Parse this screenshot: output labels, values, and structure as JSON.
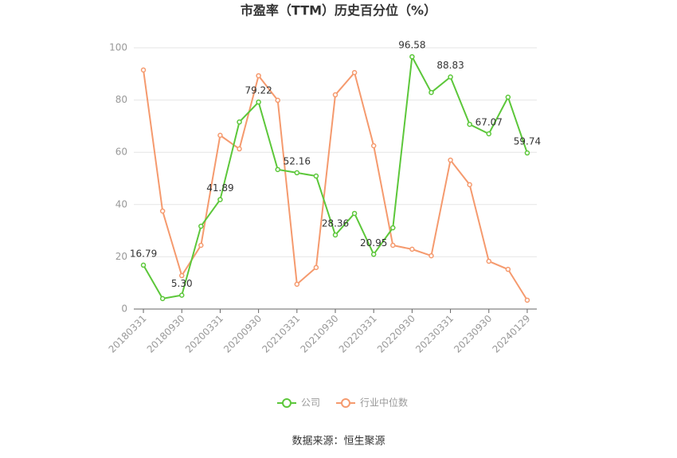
{
  "chart_data": {
    "type": "line",
    "title": "市盈率（TTM）历史百分位（%）",
    "categories": [
      "20180331",
      null,
      "20180930",
      null,
      "20200331",
      null,
      "20200930",
      null,
      "20210331",
      null,
      "20210930",
      null,
      "20220331",
      null,
      "20220930",
      null,
      "20230331",
      null,
      "20230930",
      null,
      "20240129"
    ],
    "series": [
      {
        "name": "公司",
        "color": "#5cc73a",
        "values": [
          16.79,
          4.0,
          5.3,
          31.7,
          41.89,
          71.6,
          79.22,
          53.4,
          52.16,
          50.9,
          28.36,
          36.6,
          20.95,
          31.1,
          96.58,
          82.9,
          88.83,
          70.7,
          67.07,
          81.1,
          59.74
        ],
        "value_labels": [
          "16.79",
          null,
          "5.30",
          null,
          "41.89",
          null,
          "79.22",
          null,
          "52.16",
          null,
          "28.36",
          null,
          "20.95",
          null,
          "96.58",
          null,
          "88.83",
          null,
          "67.07",
          null,
          "59.74"
        ]
      },
      {
        "name": "行业中位数",
        "color": "#f59a6e",
        "values": [
          91.5,
          37.5,
          12.8,
          24.4,
          66.5,
          61.3,
          89.3,
          79.9,
          9.5,
          15.9,
          82.0,
          90.5,
          62.5,
          24.4,
          22.9,
          20.4,
          57.0,
          47.6,
          18.3,
          15.2,
          3.4
        ]
      }
    ],
    "ylim": [
      0,
      100
    ],
    "yticks": [
      0,
      20,
      40,
      60,
      80,
      100
    ],
    "grid": true,
    "legend": "bottom",
    "source": "数据来源：恒生聚源"
  }
}
